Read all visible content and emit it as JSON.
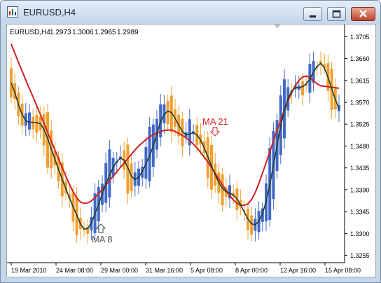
{
  "window": {
    "title": "EURUSD,H4",
    "icon": "chart-window-icon",
    "buttons": {
      "minimize": "minimize-icon",
      "maximize": "maximize-icon",
      "close": "close-icon"
    }
  },
  "chart_header": {
    "symbol": "EURUSD,H4",
    "open": "1.2973",
    "high": "1.3006",
    "low": "1.2965",
    "close": "1.2989"
  },
  "annotations": {
    "ma21_label": "MA 21",
    "ma8_label": "MA 8"
  },
  "colors": {
    "up_candle": "#4169c8",
    "down_candle": "#f0a030",
    "ma21": "#d02020",
    "ma8": "#1e3c28"
  },
  "chart_data": {
    "type": "candlestick",
    "symbol": "EURUSD",
    "timeframe": "H4",
    "y_ticks": [
      "1.3705",
      "1.3660",
      "1.3615",
      "1.3570",
      "1.3525",
      "1.3480",
      "1.3435",
      "1.3390",
      "1.3345",
      "1.3300",
      "1.3255"
    ],
    "ylim": [
      1.324,
      1.373
    ],
    "x_ticks": [
      "19 Mar 2010",
      "24 Mar 08:00",
      "29 Mar 00:00",
      "31 Mar 16:00",
      "5 Apr 08:00",
      "8 Apr 00:00",
      "12 Apr 16:00",
      "15 Apr 08:00"
    ],
    "series": [
      {
        "name": "MA 8",
        "values": [
          1.361,
          1.359,
          1.3565,
          1.3545,
          1.3532,
          1.3529,
          1.3529,
          1.3528,
          1.3526,
          1.3514,
          1.3496,
          1.3474,
          1.3453,
          1.3432,
          1.3412,
          1.3392,
          1.3373,
          1.3355,
          1.3338,
          1.332,
          1.3309,
          1.331,
          1.3322,
          1.334,
          1.336,
          1.3382,
          1.3402,
          1.342,
          1.3436,
          1.3448,
          1.3455,
          1.3451,
          1.3436,
          1.3418,
          1.3411,
          1.3416,
          1.3428,
          1.3444,
          1.346,
          1.348,
          1.3505,
          1.353,
          1.3545,
          1.3552,
          1.3549,
          1.3537,
          1.3523,
          1.351,
          1.3503,
          1.3505,
          1.3507,
          1.3503,
          1.3492,
          1.3476,
          1.3458,
          1.3439,
          1.3421,
          1.3405,
          1.3393,
          1.3386,
          1.3383,
          1.3379,
          1.3371,
          1.3359,
          1.3344,
          1.333,
          1.332,
          1.3318,
          1.3325,
          1.3341,
          1.3366,
          1.34,
          1.344,
          1.3482,
          1.3521,
          1.3553,
          1.3577,
          1.3593,
          1.36,
          1.36,
          1.3602,
          1.3608,
          1.3618,
          1.3632,
          1.3644,
          1.365,
          1.3641,
          1.3621,
          1.3598,
          1.3576,
          1.3557
        ]
      },
      {
        "name": "MA 21",
        "values": [
          1.369,
          1.3671,
          1.3652,
          1.3634,
          1.3616,
          1.3598,
          1.3581,
          1.3563,
          1.3545,
          1.3527,
          1.3508,
          1.349,
          1.3472,
          1.3454,
          1.3436,
          1.3418,
          1.3401,
          1.3386,
          1.3373,
          1.3365,
          1.3362,
          1.3363,
          1.3367,
          1.3374,
          1.3382,
          1.3391,
          1.34,
          1.3409,
          1.3418,
          1.3427,
          1.3436,
          1.3445,
          1.3454,
          1.3463,
          1.3472,
          1.348,
          1.3487,
          1.3493,
          1.3499,
          1.3503,
          1.3507,
          1.351,
          1.3512,
          1.3513,
          1.3513,
          1.351,
          1.3506,
          1.3502,
          1.3497,
          1.3491,
          1.3484,
          1.3476,
          1.3467,
          1.3457,
          1.3447,
          1.3436,
          1.3424,
          1.3412,
          1.34,
          1.3389,
          1.3378,
          1.3369,
          1.3362,
          1.3358,
          1.3358,
          1.3361,
          1.337,
          1.3384,
          1.3403,
          1.3424,
          1.3446,
          1.3468,
          1.349,
          1.3512,
          1.3533,
          1.3554,
          1.3573,
          1.359,
          1.3604,
          1.3615,
          1.3622,
          1.3624,
          1.3621,
          1.3614,
          1.3608,
          1.3604,
          1.3603,
          1.3602,
          1.3601,
          1.36,
          1.3599
        ]
      }
    ],
    "grid": false,
    "legend": "none"
  }
}
